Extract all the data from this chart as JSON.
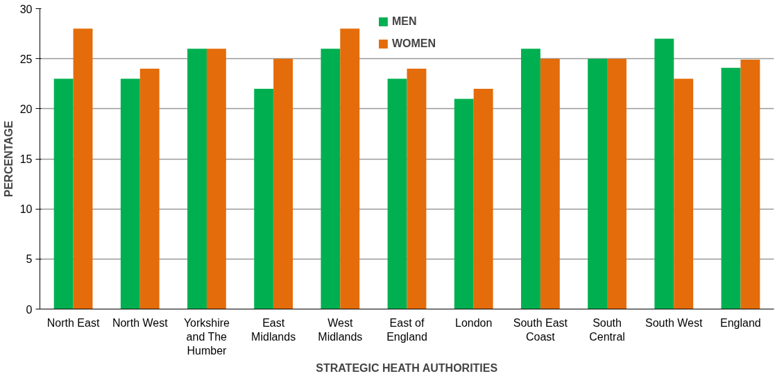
{
  "chart_data": {
    "type": "bar",
    "xlabel": "STRATEGIC HEATH AUTHORITIES",
    "ylabel": "PERCENTAGE",
    "categories": [
      "North East",
      "North West",
      "Yorkshire and The Humber",
      "East Midlands",
      "West Midlands",
      "East of England",
      "London",
      "South East Coast",
      "South Central",
      "South West",
      "England"
    ],
    "series": [
      {
        "name": "MEN",
        "color": "#00b050",
        "values": [
          23,
          23,
          26,
          22,
          26,
          23,
          21,
          26,
          25,
          27,
          24.1
        ]
      },
      {
        "name": "WOMEN",
        "color": "#e46c0a",
        "values": [
          28,
          24,
          26,
          25,
          28,
          24,
          22,
          25,
          25,
          23,
          24.9
        ]
      }
    ],
    "ylim": [
      0,
      30
    ],
    "yticks": [
      0,
      5,
      10,
      15,
      20,
      25,
      30
    ],
    "grid": "y",
    "legend": "top"
  }
}
